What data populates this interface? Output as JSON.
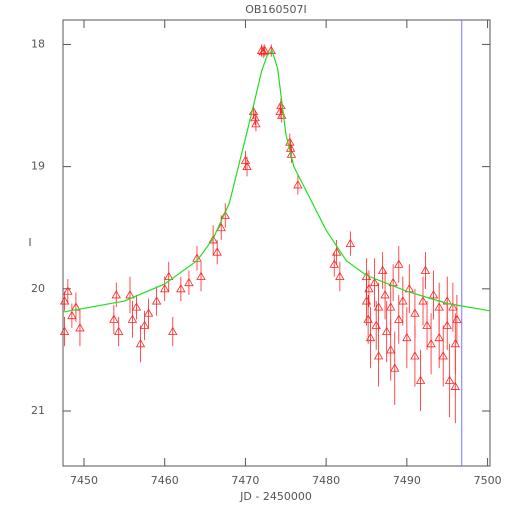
{
  "chart_data": {
    "type": "scatter",
    "title": "OB160507I",
    "x_label": "JD - 2450000",
    "y_label": "I",
    "xlim": [
      7447.4,
      7500.3
    ],
    "ylim": [
      17.8,
      21.45
    ],
    "y_inverted": true,
    "xticks": [
      7450,
      7460,
      7470,
      7480,
      7490,
      7500
    ],
    "yticks": [
      18,
      19,
      20,
      21
    ],
    "series": [
      {
        "type": "scatter",
        "marker": "triangle",
        "color": "#ff2020",
        "x": [
          7447.6,
          7447.6,
          7448.5,
          7449.5,
          7448,
          7449,
          7453.7,
          7454,
          7454.3,
          7455.7,
          7456,
          7456.5,
          7457,
          7457.5,
          7458,
          7459,
          7460,
          7460.5,
          7461,
          7462,
          7463,
          7464,
          7464.5,
          7466,
          7466.5,
          7467,
          7467.5,
          7470,
          7470.2,
          7471,
          7471.2,
          7471.3,
          7472,
          7472.2,
          7472.4,
          7473.2,
          7474.3,
          7474.4,
          7474.5,
          7475.5,
          7475.6,
          7475.7,
          7476.5,
          7481,
          7481.3,
          7481.7,
          7483,
          7485,
          7485,
          7485.2,
          7485.3,
          7485.5,
          7486,
          7486.2,
          7486.5,
          7486.5,
          7487,
          7487.3,
          7487.5,
          7488,
          7488,
          7488.3,
          7488.5,
          7489,
          7489,
          7489.5,
          7490,
          7490.3,
          7491,
          7491,
          7491.7,
          7492,
          7492.3,
          7492.5,
          7493,
          7493.3,
          7494,
          7494,
          7494.5,
          7495,
          7495,
          7495.3,
          7495.7,
          7496,
          7496,
          7496.2
        ],
        "values": [
          20.1,
          20.35,
          20.22,
          20.32,
          20.02,
          20.15,
          20.25,
          20.05,
          20.35,
          20.05,
          20.25,
          20.15,
          20.45,
          20.3,
          20.2,
          20.1,
          20.0,
          19.9,
          20.35,
          20.0,
          19.95,
          19.75,
          19.9,
          19.6,
          19.7,
          19.5,
          19.4,
          18.95,
          19.0,
          18.55,
          18.6,
          18.65,
          18.05,
          18.06,
          18.05,
          18.05,
          18.55,
          18.5,
          18.58,
          18.8,
          18.85,
          18.9,
          19.15,
          19.8,
          19.7,
          19.9,
          19.63,
          19.9,
          20.1,
          20.25,
          20.0,
          20.4,
          19.95,
          20.3,
          20.15,
          20.55,
          19.85,
          20.05,
          20.35,
          20.5,
          20.15,
          19.95,
          20.65,
          20.25,
          19.8,
          20.1,
          20.4,
          20.0,
          20.2,
          20.55,
          20.75,
          20.1,
          19.85,
          20.3,
          20.45,
          20.05,
          20.15,
          20.4,
          20.55,
          20.1,
          20.3,
          20.75,
          20.15,
          20.45,
          20.8,
          20.25
        ],
        "errors": [
          0.08,
          0.12,
          0.1,
          0.15,
          0.1,
          0.12,
          0.12,
          0.1,
          0.12,
          0.15,
          0.15,
          0.1,
          0.15,
          0.12,
          0.12,
          0.12,
          0.1,
          0.12,
          0.12,
          0.1,
          0.1,
          0.1,
          0.12,
          0.12,
          0.1,
          0.1,
          0.1,
          0.08,
          0.08,
          0.06,
          0.06,
          0.06,
          0.05,
          0.05,
          0.05,
          0.05,
          0.06,
          0.06,
          0.06,
          0.07,
          0.07,
          0.07,
          0.08,
          0.1,
          0.1,
          0.12,
          0.1,
          0.15,
          0.2,
          0.2,
          0.15,
          0.25,
          0.2,
          0.2,
          0.2,
          0.25,
          0.15,
          0.2,
          0.25,
          0.25,
          0.2,
          0.15,
          0.3,
          0.2,
          0.15,
          0.2,
          0.25,
          0.2,
          0.2,
          0.25,
          0.25,
          0.2,
          0.15,
          0.2,
          0.25,
          0.2,
          0.2,
          0.25,
          0.25,
          0.2,
          0.2,
          0.3,
          0.2,
          0.25,
          0.3,
          0.2
        ]
      },
      {
        "type": "line",
        "color": "#22dd22",
        "x": [
          7447.4,
          7455,
          7460,
          7464,
          7466,
          7468,
          7470,
          7471,
          7472,
          7472.7,
          7473.3,
          7474,
          7475,
          7476,
          7478,
          7480,
          7482.5,
          7485,
          7490,
          7495,
          7500.3
        ],
        "values": [
          20.19,
          20.1,
          19.96,
          19.77,
          19.59,
          19.3,
          18.77,
          18.5,
          18.22,
          18.09,
          18.05,
          18.2,
          18.73,
          19.0,
          19.26,
          19.52,
          19.77,
          19.89,
          20.02,
          20.12,
          20.18
        ]
      }
    ],
    "vline": {
      "x": 7496.8,
      "color": "#7777ff"
    }
  }
}
